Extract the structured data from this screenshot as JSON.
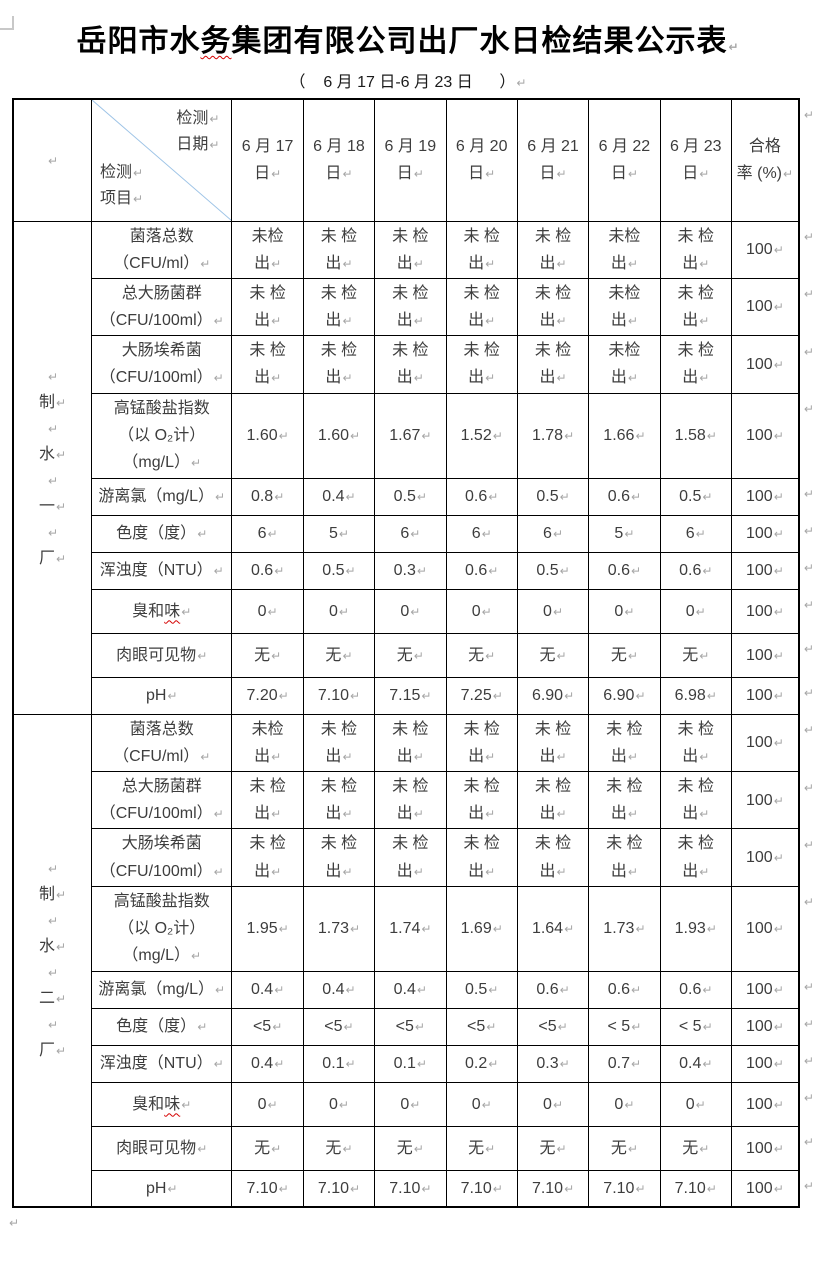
{
  "pilcrow_mark": "↵",
  "title": {
    "pre": "岳阳市水",
    "typo": "务",
    "post": "集团有限公司出厂水日检结果公示表"
  },
  "subtitle": "（    6 月 17 日-6 月 23 日      ）",
  "colors": {
    "border": "#000000",
    "diagonal_line": "#9dc3e6",
    "spellcheck": "#d40000",
    "pilcrow": "#a6a6a6"
  },
  "table": {
    "corner": {
      "top": "检测\n日期",
      "bottom": "检测\n项目"
    },
    "date_headers": [
      "6 月 17\n日",
      "6 月 18\n日",
      "6 月 19\n日",
      "6 月 20\n日",
      "6 月 21\n日",
      "6 月 22\n日",
      "6 月 23\n日"
    ],
    "rate_header": "合格\n率 (%)",
    "sections": [
      {
        "plant": "制水一厂",
        "rows": [
          {
            "label": "菌落总数\n（CFU/ml）",
            "values": [
              "未检\n出",
              "未 检\n出",
              "未 检\n出",
              "未 检\n出",
              "未 检\n出",
              "未检\n出",
              "未 检\n出"
            ],
            "rate": "100"
          },
          {
            "label": "总大肠菌群\n（CFU/100ml）",
            "values": [
              "未 检\n出",
              "未 检\n出",
              "未 检\n出",
              "未 检\n出",
              "未 检\n出",
              "未检\n出",
              "未 检\n出"
            ],
            "rate": "100"
          },
          {
            "label": "大肠埃希菌\n（CFU/100ml）",
            "values": [
              "未 检\n出",
              "未 检\n出",
              "未 检\n出",
              "未 检\n出",
              "未 检\n出",
              "未检\n出",
              "未 检\n出"
            ],
            "rate": "100"
          },
          {
            "label": "高锰酸盐指数\n（以 O₂计）\n（mg/L）",
            "values": [
              "1.60",
              "1.60",
              "1.67",
              "1.52",
              "1.78",
              "1.66",
              "1.58"
            ],
            "rate": "100"
          },
          {
            "label": "游离氯（mg/L）",
            "values": [
              "0.8",
              "0.4",
              "0.5",
              "0.6",
              "0.5",
              "0.6",
              "0.5"
            ],
            "rate": "100"
          },
          {
            "label": "色度（度）",
            "values": [
              "6",
              "5",
              "6",
              "6",
              "6",
              "5",
              "6"
            ],
            "rate": "100"
          },
          {
            "label": "浑浊度（NTU）",
            "values": [
              "0.6",
              "0.5",
              "0.3",
              "0.6",
              "0.5",
              "0.6",
              "0.6"
            ],
            "rate": "100"
          },
          {
            "label": "臭和",
            "label_wavy": "味",
            "values": [
              "0",
              "0",
              "0",
              "0",
              "0",
              "0",
              "0"
            ],
            "rate": "100"
          },
          {
            "label": "肉眼可见物",
            "values": [
              "无",
              "无",
              "无",
              "无",
              "无",
              "无",
              "无"
            ],
            "rate": "100"
          },
          {
            "label": "pH",
            "values": [
              "7.20",
              "7.10",
              "7.15",
              "7.25",
              "6.90",
              "6.90",
              "6.98"
            ],
            "rate": "100"
          }
        ]
      },
      {
        "plant": "制水二厂",
        "rows": [
          {
            "label": "菌落总数\n（CFU/ml）",
            "values": [
              "未检\n出",
              "未 检\n出",
              "未 检\n出",
              "未 检\n出",
              "未 检\n出",
              "未 检\n出",
              "未 检\n出"
            ],
            "rate": "100"
          },
          {
            "label": "总大肠菌群\n（CFU/100ml）",
            "values": [
              "未 检\n出",
              "未 检\n出",
              "未 检\n出",
              "未 检\n出",
              "未 检\n出",
              "未 检\n出",
              "未 检\n出"
            ],
            "rate": "100"
          },
          {
            "label": "大肠埃希菌\n（CFU/100ml）",
            "values": [
              "未 检\n出",
              "未 检\n出",
              "未 检\n出",
              "未 检\n出",
              "未 检\n出",
              "未 检\n出",
              "未 检\n出"
            ],
            "rate": "100"
          },
          {
            "label": "高锰酸盐指数\n（以 O₂计）\n（mg/L）",
            "values": [
              "1.95",
              "1.73",
              "1.74",
              "1.69",
              "1.64",
              "1.73",
              "1.93"
            ],
            "rate": "100"
          },
          {
            "label": "游离氯（mg/L）",
            "values": [
              "0.4",
              "0.4",
              "0.4",
              "0.5",
              "0.6",
              "0.6",
              "0.6"
            ],
            "rate": "100"
          },
          {
            "label": "色度（度）",
            "values": [
              "<5",
              "<5",
              "<5",
              "<5",
              "<5",
              "< 5",
              "< 5"
            ],
            "rate": "100"
          },
          {
            "label": "浑浊度（NTU）",
            "values": [
              "0.4",
              "0.1",
              "0.1",
              "0.2",
              "0.3",
              "0.7",
              "0.4"
            ],
            "rate": "100"
          },
          {
            "label": "臭和",
            "label_wavy": "味",
            "values": [
              "0",
              "0",
              "0",
              "0",
              "0",
              "0",
              "0"
            ],
            "rate": "100"
          },
          {
            "label": "肉眼可见物",
            "values": [
              "无",
              "无",
              "无",
              "无",
              "无",
              "无",
              "无"
            ],
            "rate": "100"
          },
          {
            "label": "pH",
            "values": [
              "7.10",
              "7.10",
              "7.10",
              "7.10",
              "7.10",
              "7.10",
              "7.10"
            ],
            "rate": "100"
          }
        ]
      }
    ]
  }
}
